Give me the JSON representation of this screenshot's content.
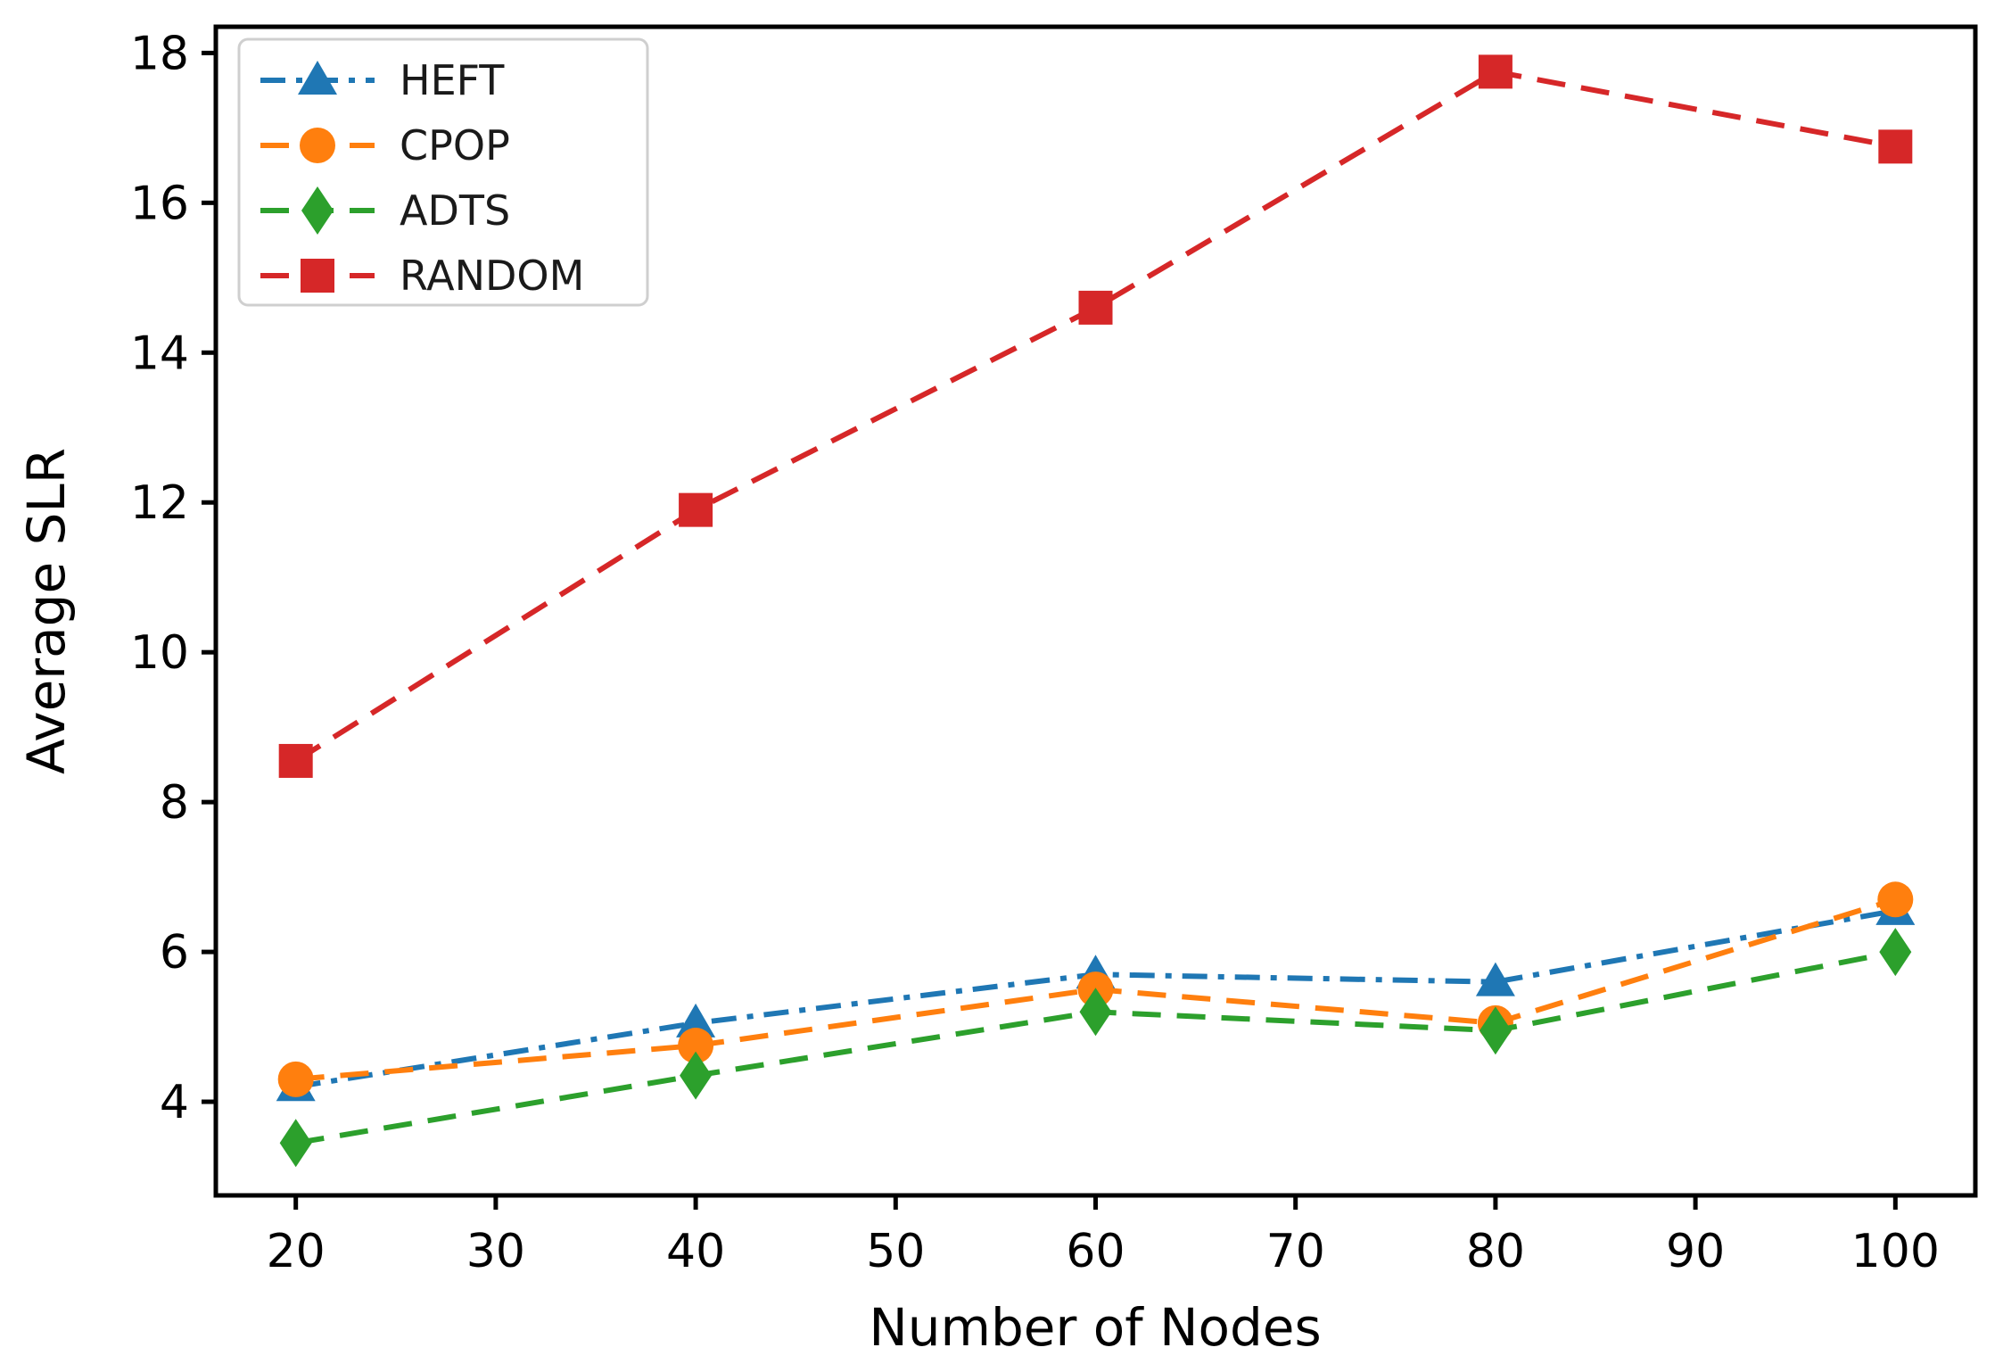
{
  "chart_data": {
    "type": "line",
    "title": "",
    "xlabel": "Number of Nodes",
    "ylabel": "Average SLR",
    "x": [
      20,
      40,
      60,
      80,
      100
    ],
    "xticks": [
      20,
      30,
      40,
      50,
      60,
      70,
      80,
      90,
      100
    ],
    "yticks": [
      4,
      6,
      8,
      10,
      12,
      14,
      16,
      18
    ],
    "xlim": [
      16,
      104
    ],
    "ylim": [
      2.75,
      18.35
    ],
    "grid": false,
    "legend_position": "upper-left",
    "background_color": "#ffffff",
    "axis_color": "#000000",
    "legend_border_color": "#cfcfcf",
    "series": [
      {
        "name": "HEFT",
        "color": "#1f77b4",
        "marker": "triangle",
        "linestyle": "dashdot",
        "values": [
          4.2,
          5.05,
          5.7,
          5.6,
          6.55
        ]
      },
      {
        "name": "CPOP",
        "color": "#ff7f0e",
        "marker": "circle",
        "linestyle": "dashed",
        "values": [
          4.3,
          4.75,
          5.5,
          5.05,
          6.7
        ]
      },
      {
        "name": "ADTS",
        "color": "#2ca02c",
        "marker": "diamond",
        "linestyle": "dashed",
        "values": [
          3.45,
          4.35,
          5.2,
          4.95,
          6.0
        ]
      },
      {
        "name": "RANDOM",
        "color": "#d62728",
        "marker": "square",
        "linestyle": "dashed",
        "values": [
          8.55,
          11.9,
          14.6,
          17.75,
          16.75
        ]
      }
    ]
  }
}
